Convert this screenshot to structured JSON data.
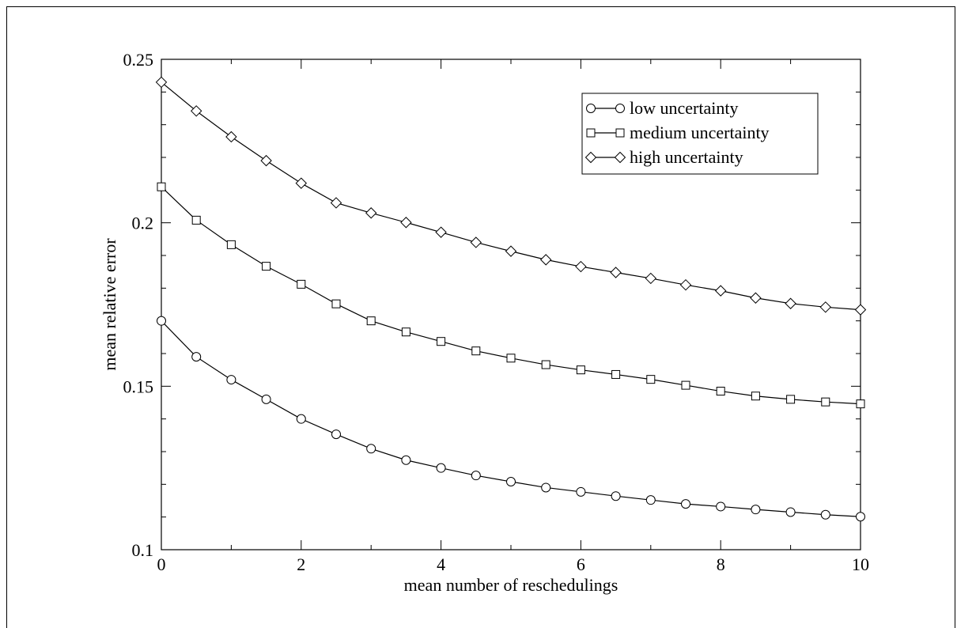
{
  "chart_data": {
    "type": "line",
    "xlabel": "mean number of reschedulings",
    "ylabel": "mean relative error",
    "xlim": [
      0,
      10
    ],
    "ylim": [
      0.1,
      0.25
    ],
    "x_ticks": [
      0,
      2,
      4,
      6,
      8,
      10
    ],
    "y_ticks": [
      0.1,
      0.15,
      0.2,
      0.25
    ],
    "x_tick_labels": [
      "0",
      "2",
      "4",
      "6",
      "8",
      "10"
    ],
    "y_tick_labels": [
      "0.1",
      "0.15",
      "0.2",
      "0.25"
    ],
    "grid": false,
    "legend_position": "top-right",
    "x": [
      0,
      0.5,
      1,
      1.5,
      2,
      2.5,
      3,
      3.5,
      4,
      4.5,
      5,
      5.5,
      6,
      6.5,
      7,
      7.5,
      8,
      8.5,
      9,
      9.5,
      10
    ],
    "series": [
      {
        "name": "low uncertainty",
        "marker": "circle",
        "values": [
          0.17,
          0.159,
          0.152,
          0.146,
          0.14,
          0.1353,
          0.1309,
          0.1274,
          0.125,
          0.1227,
          0.1208,
          0.119,
          0.1177,
          0.1164,
          0.1152,
          0.114,
          0.1132,
          0.1123,
          0.1115,
          0.1107,
          0.1101
        ]
      },
      {
        "name": "medium uncertainty",
        "marker": "square",
        "values": [
          0.211,
          0.2008,
          0.1933,
          0.1867,
          0.1812,
          0.1752,
          0.17,
          0.1666,
          0.1637,
          0.1608,
          0.1586,
          0.1566,
          0.155,
          0.1536,
          0.1521,
          0.1503,
          0.1485,
          0.147,
          0.146,
          0.1452,
          0.1446
        ]
      },
      {
        "name": "high uncertainty",
        "marker": "diamond",
        "values": [
          0.243,
          0.2342,
          0.2263,
          0.219,
          0.2121,
          0.2061,
          0.203,
          0.2001,
          0.1971,
          0.194,
          0.1913,
          0.1887,
          0.1866,
          0.1848,
          0.183,
          0.181,
          0.1792,
          0.177,
          0.1753,
          0.1742,
          0.1734
        ]
      }
    ]
  }
}
